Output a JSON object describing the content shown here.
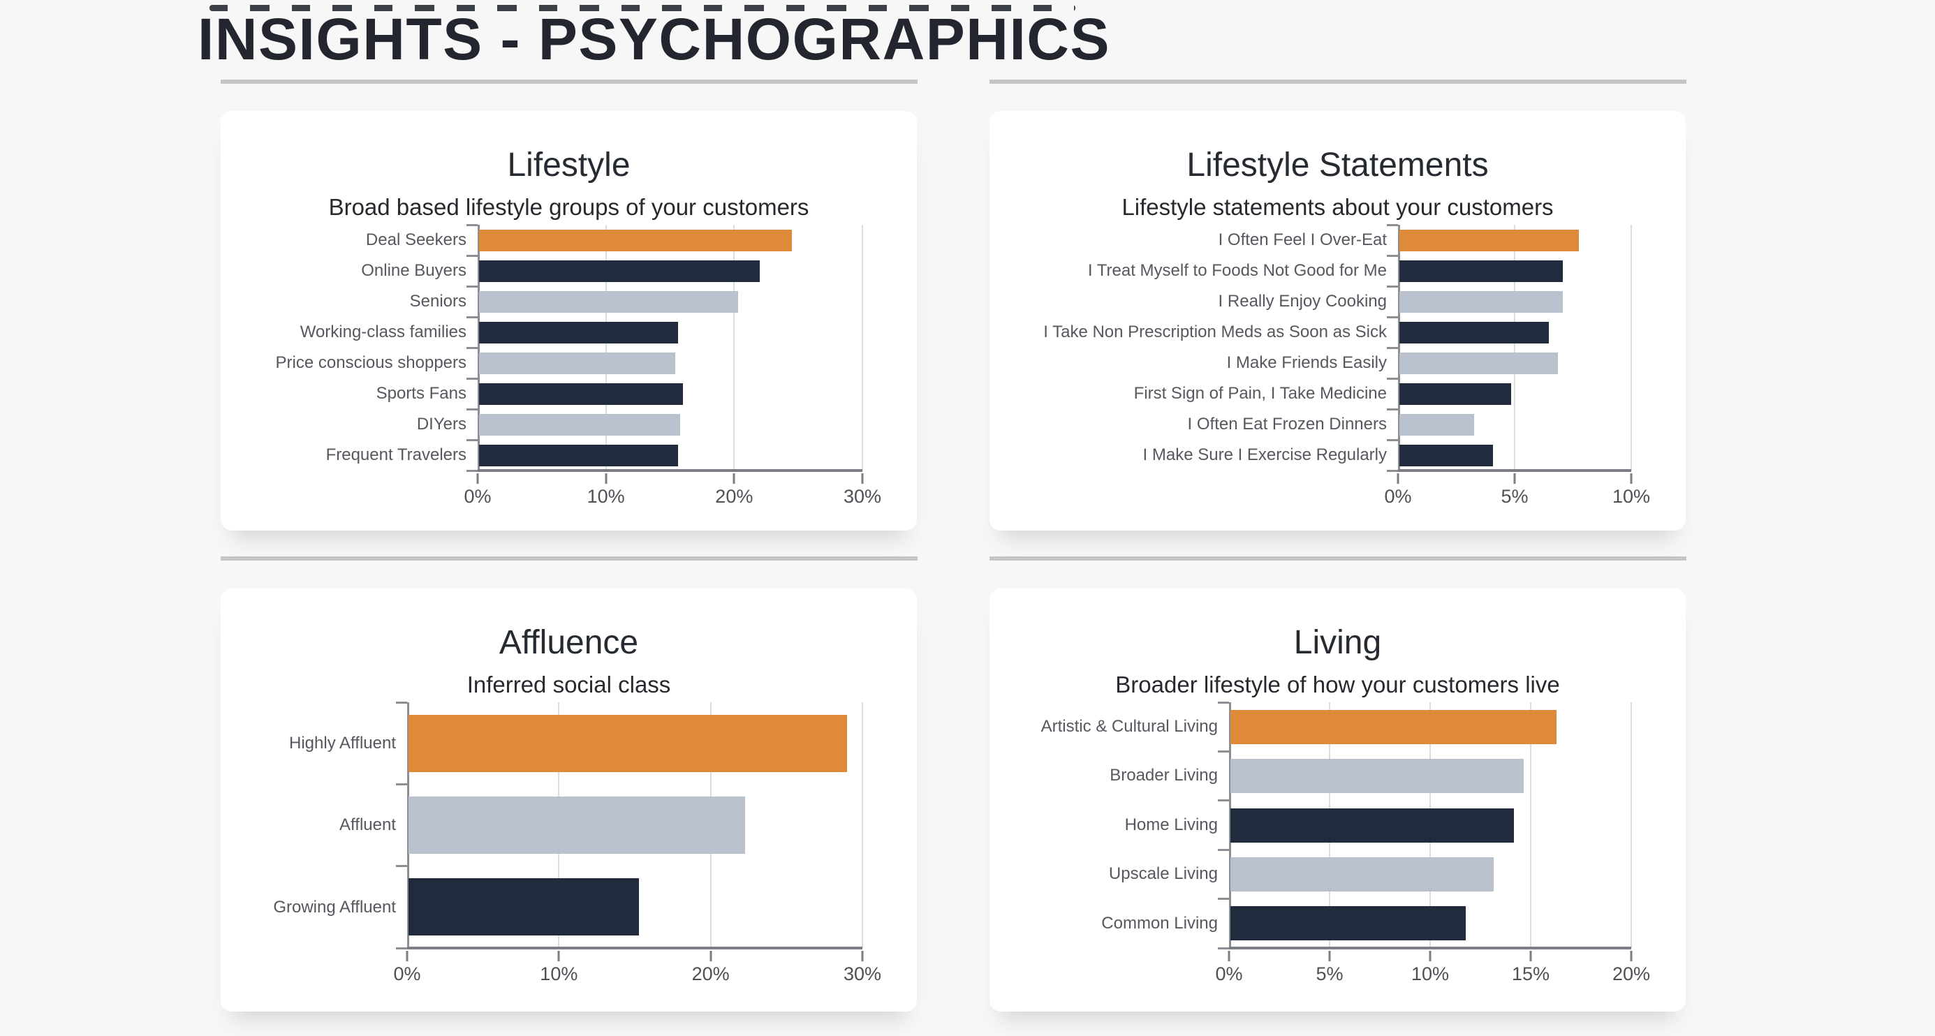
{
  "page": {
    "title": "INSIGHTS - PSYCHOGRAPHICS",
    "background": "#f7f7f8"
  },
  "palette": {
    "orange": "#de8a38",
    "dark": "#202c3e",
    "light": "#b8c1cd"
  },
  "chart_data": [
    {
      "type": "bar",
      "orientation": "horizontal",
      "title": "Lifestyle",
      "subtitle": "Broad based lifestyle groups of your customers",
      "categories": [
        "Deal Seekers",
        "Online Buyers",
        "Seniors",
        "Working-class families",
        "Price conscious shoppers",
        "Sports Fans",
        "DIYers",
        "Frequent Travelers"
      ],
      "values": [
        24.4,
        21.9,
        20.2,
        15.5,
        15.3,
        15.9,
        15.7,
        15.5
      ],
      "bar_colors": [
        "orange",
        "dark",
        "light",
        "dark",
        "light",
        "dark",
        "light",
        "dark"
      ],
      "axis": {
        "xlim": [
          0,
          30
        ],
        "x_tick_values": [
          0,
          10,
          20,
          30
        ],
        "x_tick_labels": [
          "0%",
          "10%",
          "20%",
          "30%"
        ],
        "grid": true,
        "unit": "percent"
      },
      "legend": "none"
    },
    {
      "type": "bar",
      "orientation": "horizontal",
      "title": "Lifestyle Statements",
      "subtitle": "Lifestyle statements about your customers",
      "categories": [
        "I Often Feel I Over-Eat",
        "I Treat Myself to Foods Not Good for Me",
        "I Really Enjoy Cooking",
        "I Take Non Prescription Meds as Soon as Sick",
        "I Make Friends Easily",
        "First Sign of Pain, I Take Medicine",
        "I Often Eat Frozen Dinners",
        "I Make Sure I Exercise Regularly"
      ],
      "values": [
        7.7,
        7.0,
        7.0,
        6.4,
        6.8,
        4.8,
        3.2,
        4.0
      ],
      "bar_colors": [
        "orange",
        "dark",
        "light",
        "dark",
        "light",
        "dark",
        "light",
        "dark"
      ],
      "axis": {
        "xlim": [
          0,
          10
        ],
        "x_tick_values": [
          0,
          5,
          10
        ],
        "x_tick_labels": [
          "0%",
          "5%",
          "10%"
        ],
        "grid": true,
        "unit": "percent"
      },
      "legend": "none"
    },
    {
      "type": "bar",
      "orientation": "horizontal",
      "title": "Affluence",
      "subtitle": "Inferred social class",
      "categories": [
        "Highly Affluent",
        "Affluent",
        "Growing Affluent"
      ],
      "values": [
        28.9,
        22.2,
        15.2
      ],
      "bar_colors": [
        "orange",
        "light",
        "dark"
      ],
      "axis": {
        "xlim": [
          0,
          30
        ],
        "x_tick_values": [
          0,
          10,
          20,
          30
        ],
        "x_tick_labels": [
          "0%",
          "10%",
          "20%",
          "30%"
        ],
        "grid": true,
        "unit": "percent"
      },
      "legend": "none"
    },
    {
      "type": "bar",
      "orientation": "horizontal",
      "title": "Living",
      "subtitle": "Broader lifestyle of how your customers live",
      "categories": [
        "Artistic & Cultural Living",
        "Broader Living",
        "Home Living",
        "Upscale Living",
        "Common Living"
      ],
      "values": [
        16.2,
        14.6,
        14.1,
        13.1,
        11.7
      ],
      "bar_colors": [
        "orange",
        "light",
        "dark",
        "light",
        "dark"
      ],
      "axis": {
        "xlim": [
          0,
          20
        ],
        "x_tick_values": [
          0,
          5,
          10,
          15,
          20
        ],
        "x_tick_labels": [
          "0%",
          "5%",
          "10%",
          "15%",
          "20%"
        ],
        "grid": true,
        "unit": "percent"
      },
      "legend": "none"
    }
  ]
}
